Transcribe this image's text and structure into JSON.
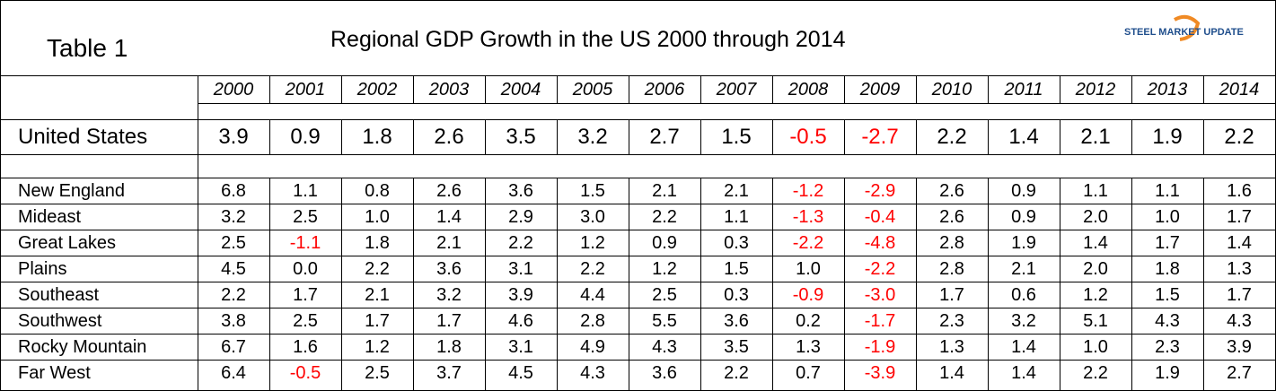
{
  "header": {
    "label": "Table 1",
    "title": "Regional GDP Growth in the US 2000 through 2014",
    "logo": "STEEL MARKET UPDATE"
  },
  "negative_color": "#ff0000",
  "table": {
    "columns": [
      "2000",
      "2001",
      "2002",
      "2003",
      "2004",
      "2005",
      "2006",
      "2007",
      "2008",
      "2009",
      "2010",
      "2011",
      "2012",
      "2013",
      "2014"
    ],
    "total": {
      "name": "United States",
      "values": [
        "3.9",
        "0.9",
        "1.8",
        "2.6",
        "3.5",
        "3.2",
        "2.7",
        "1.5",
        "-0.5",
        "-2.7",
        "2.2",
        "1.4",
        "2.1",
        "1.9",
        "2.2"
      ]
    },
    "rows": [
      {
        "name": "New England",
        "values": [
          "6.8",
          "1.1",
          "0.8",
          "2.6",
          "3.6",
          "1.5",
          "2.1",
          "2.1",
          "-1.2",
          "-2.9",
          "2.6",
          "0.9",
          "1.1",
          "1.1",
          "1.6"
        ]
      },
      {
        "name": "Mideast",
        "values": [
          "3.2",
          "2.5",
          "1.0",
          "1.4",
          "2.9",
          "3.0",
          "2.2",
          "1.1",
          "-1.3",
          "-0.4",
          "2.6",
          "0.9",
          "2.0",
          "1.0",
          "1.7"
        ]
      },
      {
        "name": "Great Lakes",
        "values": [
          "2.5",
          "-1.1",
          "1.8",
          "2.1",
          "2.2",
          "1.2",
          "0.9",
          "0.3",
          "-2.2",
          "-4.8",
          "2.8",
          "1.9",
          "1.4",
          "1.7",
          "1.4"
        ]
      },
      {
        "name": "Plains",
        "values": [
          "4.5",
          "0.0",
          "2.2",
          "3.6",
          "3.1",
          "2.2",
          "1.2",
          "1.5",
          "1.0",
          "-2.2",
          "2.8",
          "2.1",
          "2.0",
          "1.8",
          "1.3"
        ]
      },
      {
        "name": "Southeast",
        "values": [
          "2.2",
          "1.7",
          "2.1",
          "3.2",
          "3.9",
          "4.4",
          "2.5",
          "0.3",
          "-0.9",
          "-3.0",
          "1.7",
          "0.6",
          "1.2",
          "1.5",
          "1.7"
        ]
      },
      {
        "name": "Southwest",
        "values": [
          "3.8",
          "2.5",
          "1.7",
          "1.7",
          "4.6",
          "2.8",
          "5.5",
          "3.6",
          "0.2",
          "-1.7",
          "2.3",
          "3.2",
          "5.1",
          "4.3",
          "4.3"
        ]
      },
      {
        "name": "Rocky Mountain",
        "values": [
          "6.7",
          "1.6",
          "1.2",
          "1.8",
          "3.1",
          "4.9",
          "4.3",
          "3.5",
          "1.3",
          "-1.9",
          "1.3",
          "1.4",
          "1.0",
          "2.3",
          "3.9"
        ]
      },
      {
        "name": "Far West",
        "values": [
          "6.4",
          "-0.5",
          "2.5",
          "3.7",
          "4.5",
          "4.3",
          "3.6",
          "2.2",
          "0.7",
          "-3.9",
          "1.4",
          "1.4",
          "2.2",
          "1.9",
          "2.7"
        ]
      }
    ]
  }
}
